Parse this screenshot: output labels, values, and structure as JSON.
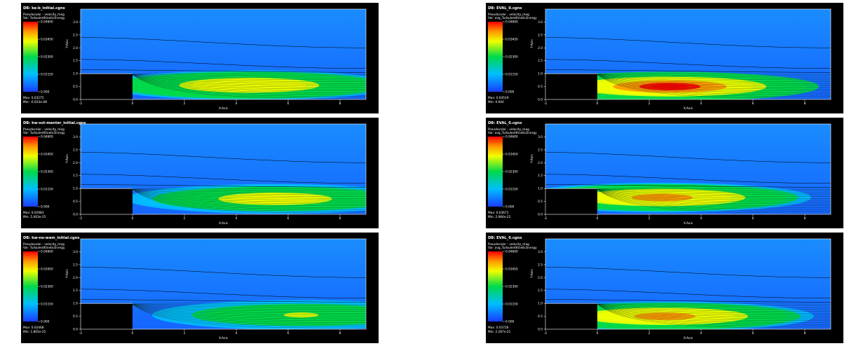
{
  "legend_ticks": [
    "0.04600",
    "0.03450",
    "0.02300",
    "0.01150",
    "0.000"
  ],
  "pseudocolor_line": "Pseudocolor - velocity_mag",
  "x_axis_label": "X-Axis",
  "y_axis_label": "Y-Axis",
  "colors": {
    "background": "#000000",
    "page": "#ffffff",
    "frame": "#ffffff",
    "flow_base": "#1565ff",
    "flow_top": "#1a8cff",
    "wall": "#000000"
  },
  "chart_data": [
    {
      "type": "heatmap",
      "db": "DB: ke-b_initial.cgns",
      "var": "Var: TurbulentKineticEnergy",
      "max": "Max: 0.03275",
      "min": "Min: -6.653e-08",
      "value_range": [
        0.0,
        0.046
      ],
      "peak_value": 0.03275,
      "peak_location": [
        4.5,
        0.55
      ],
      "xlim": [
        -2,
        9
      ],
      "ylim": [
        0,
        3.5
      ],
      "xticks": [
        "-2",
        "0",
        "2",
        "4",
        "6",
        "8"
      ],
      "yticks": [
        "0.0",
        "0.5",
        "1.0",
        "1.5",
        "2.0",
        "2.5",
        "3.0"
      ]
    },
    {
      "type": "heatmap",
      "db": "DB: EVAL_0.cgns",
      "var": "Var: avg_TurbulentKineticEnergy",
      "max": "Max: 0.04519",
      "min": "Min: 0.000",
      "value_range": [
        0.0,
        0.046
      ],
      "peak_value": 0.04519,
      "peak_location": [
        2.8,
        0.5
      ],
      "xlim": [
        -2,
        9
      ],
      "ylim": [
        0,
        3.5
      ],
      "xticks": [
        "-2",
        "0",
        "2",
        "4",
        "6",
        "8"
      ],
      "yticks": [
        "0.0",
        "0.5",
        "1.0",
        "1.5",
        "2.0",
        "2.5",
        "3.0"
      ]
    },
    {
      "type": "heatmap",
      "db": "DB: kw-sst-menter_initial.cgns",
      "var": "Var: TurbulentKineticEnergy",
      "max": "Max: 0.02983",
      "min": "Min: 5.403e-25",
      "value_range": [
        0.0,
        0.046
      ],
      "peak_value": 0.02983,
      "peak_location": [
        5.5,
        0.6
      ],
      "xlim": [
        -2,
        9
      ],
      "ylim": [
        0,
        3.5
      ],
      "xticks": [
        "-2",
        "0",
        "2",
        "4",
        "6",
        "8"
      ],
      "yticks": [
        "0.0",
        "0.5",
        "1.0",
        "1.5",
        "2.0",
        "2.5",
        "3.0"
      ]
    },
    {
      "type": "heatmap",
      "db": "DB: EVAL_0.cgns",
      "var": "Var: avg_TurbulentKineticEnergy",
      "max": "Max: 0.03671",
      "min": "Min: 2.984e-22",
      "value_range": [
        0.0,
        0.046
      ],
      "peak_value": 0.03671,
      "peak_location": [
        2.5,
        0.65
      ],
      "xlim": [
        -2,
        9
      ],
      "ylim": [
        0,
        3.5
      ],
      "xticks": [
        "-2",
        "0",
        "2",
        "4",
        "6",
        "8"
      ],
      "yticks": [
        "0.0",
        "0.5",
        "1.0",
        "1.5",
        "2.0",
        "2.5",
        "3.0"
      ]
    },
    {
      "type": "heatmap",
      "db": "DB: kw-ne-wam_initial.cgns",
      "var": "Var: TurbulentKineticEnergy",
      "max": "Max: 0.02468",
      "min": "Min: 1.805e-25",
      "value_range": [
        0.0,
        0.046
      ],
      "peak_value": 0.02468,
      "peak_location": [
        6.5,
        0.55
      ],
      "xlim": [
        -2,
        9
      ],
      "ylim": [
        0,
        3.5
      ],
      "xticks": [
        "-2",
        "0",
        "2",
        "4",
        "6",
        "8"
      ],
      "yticks": [
        "0.0",
        "0.5",
        "1.0",
        "1.5",
        "2.0",
        "2.5",
        "3.0"
      ]
    },
    {
      "type": "heatmap",
      "db": "DB: EVAL_0.cgns",
      "var": "Var: avg_TurbulentKineticEnergy",
      "max": "Max: 0.03726",
      "min": "Min: 2.287e-21",
      "value_range": [
        0.0,
        0.046
      ],
      "peak_value": 0.03726,
      "peak_location": [
        2.6,
        0.5
      ],
      "xlim": [
        -2,
        9
      ],
      "ylim": [
        0,
        3.5
      ],
      "xticks": [
        "-2",
        "0",
        "2",
        "4",
        "6",
        "8"
      ],
      "yticks": [
        "0.0",
        "0.5",
        "1.0",
        "1.5",
        "2.0",
        "2.5",
        "3.0"
      ]
    }
  ]
}
